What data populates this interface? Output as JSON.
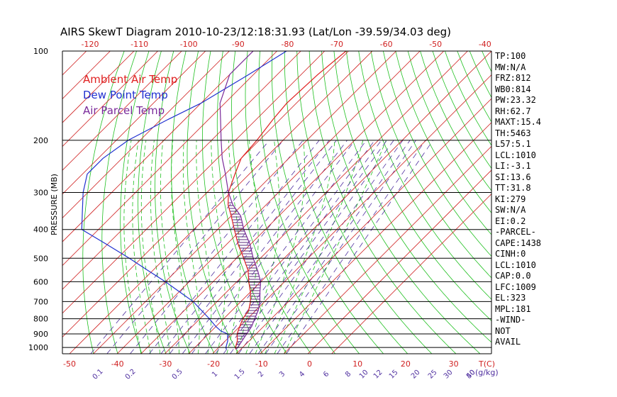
{
  "title": "AIRS SkewT Diagram 2010-10-23/12:18:31.93 (Lat/Lon -39.59/34.03 deg)",
  "legend": [
    {
      "label": "Ambient Air Temp",
      "color": "#e02020"
    },
    {
      "label": "Dew Point Temp",
      "color": "#2030d0"
    },
    {
      "label": "Air Parcel Temp",
      "color": "#7a2a9a"
    }
  ],
  "stats": [
    "TP:100",
    "MW:N/A",
    "FRZ:812",
    "WB0:814",
    "PW:23.32",
    "RH:62.7",
    "MAXT:15.4",
    "TH:5463",
    "L57:5.1",
    "LCL:1010",
    "LI:-3.1",
    "SI:13.6",
    "TT:31.8",
    "KI:279",
    "SW:N/A",
    "EI:0.2",
    "-PARCEL-",
    "CAPE:1438",
    "CINH:0",
    "LCL:1010",
    "CAP:0.0",
    "LFC:1009",
    "EL:323",
    "MPL:181",
    "-WIND-",
    "NOT",
    "AVAIL"
  ],
  "chart_data": {
    "type": "line",
    "title": "AIRS SkewT Diagram 2010-10-23/12:18:31.93 (Lat/Lon -39.59/34.03 deg)",
    "ylabel": "PRESSURE (MB)",
    "pressure_levels": [
      100,
      200,
      300,
      400,
      500,
      600,
      700,
      800,
      900,
      1000
    ],
    "top_temp_ticks": [
      -120,
      -110,
      -100,
      -90,
      -80,
      -70,
      -60,
      -50,
      -40
    ],
    "bottom_temp_ticks": [
      -50,
      -40,
      -30,
      -20,
      -10,
      0,
      10,
      20,
      30
    ],
    "bottom_temp_label": "T(C)",
    "mixing_ratio_ticks": [
      "0.1",
      "0.2",
      "0.5",
      "1",
      "1.5",
      "2",
      "3",
      "4",
      "6",
      "8",
      "10",
      "12",
      "15",
      "20",
      "25",
      "30",
      "40",
      "50"
    ],
    "mixing_ratio_label": "(g/kg)",
    "ylim": [
      1050,
      100
    ],
    "colors": {
      "ambient": "#e02020",
      "dewpoint": "#2030d0",
      "parcel": "#7a2a9a",
      "isotherm": "#d02020",
      "dry_adiabat": "#20c020",
      "moist_adiabat": "#20c020",
      "mixing_ratio": "#5030a0",
      "hatch": "#5a2a7a"
    },
    "series": [
      {
        "name": "Ambient Air Temp",
        "points": [
          [
            100,
            -61
          ],
          [
            120,
            -63
          ],
          [
            150,
            -64
          ],
          [
            170,
            -63
          ],
          [
            200,
            -61
          ],
          [
            230,
            -60
          ],
          [
            260,
            -56
          ],
          [
            300,
            -51
          ],
          [
            330,
            -46
          ],
          [
            360,
            -40
          ],
          [
            400,
            -33
          ],
          [
            450,
            -25
          ],
          [
            500,
            -17
          ],
          [
            550,
            -10
          ],
          [
            600,
            -5
          ],
          [
            650,
            0
          ],
          [
            700,
            4
          ],
          [
            750,
            7
          ],
          [
            800,
            8
          ],
          [
            850,
            10
          ],
          [
            900,
            12
          ],
          [
            950,
            15
          ],
          [
            1000,
            17
          ],
          [
            1015,
            18
          ]
        ]
      },
      {
        "name": "Dew Point Temp",
        "points": [
          [
            100,
            -86
          ],
          [
            120,
            -92
          ],
          [
            150,
            -100
          ],
          [
            170,
            -107
          ],
          [
            200,
            -115
          ],
          [
            230,
            -118
          ],
          [
            260,
            -118
          ],
          [
            300,
            -112
          ],
          [
            350,
            -104
          ],
          [
            400,
            -97
          ],
          [
            450,
            -80
          ],
          [
            500,
            -65
          ],
          [
            550,
            -52
          ],
          [
            600,
            -40
          ],
          [
            700,
            -20
          ],
          [
            800,
            -6
          ],
          [
            850,
            0
          ],
          [
            880,
            4
          ],
          [
            900,
            8
          ],
          [
            950,
            11
          ],
          [
            1000,
            13
          ],
          [
            1015,
            14
          ]
        ]
      },
      {
        "name": "Air Parcel Temp",
        "points": [
          [
            100,
            -100
          ],
          [
            120,
            -100
          ],
          [
            150,
            -92
          ],
          [
            170,
            -85
          ],
          [
            200,
            -76
          ],
          [
            230,
            -68
          ],
          [
            260,
            -60
          ],
          [
            300,
            -51
          ],
          [
            330,
            -44
          ],
          [
            360,
            -36
          ],
          [
            400,
            -29
          ],
          [
            450,
            -20
          ],
          [
            500,
            -13
          ],
          [
            550,
            -6
          ],
          [
            600,
            0
          ],
          [
            650,
            4
          ],
          [
            700,
            8
          ],
          [
            750,
            11
          ],
          [
            800,
            13
          ],
          [
            850,
            15
          ],
          [
            900,
            16
          ],
          [
            950,
            17
          ],
          [
            1000,
            18
          ],
          [
            1015,
            18
          ]
        ]
      }
    ]
  }
}
